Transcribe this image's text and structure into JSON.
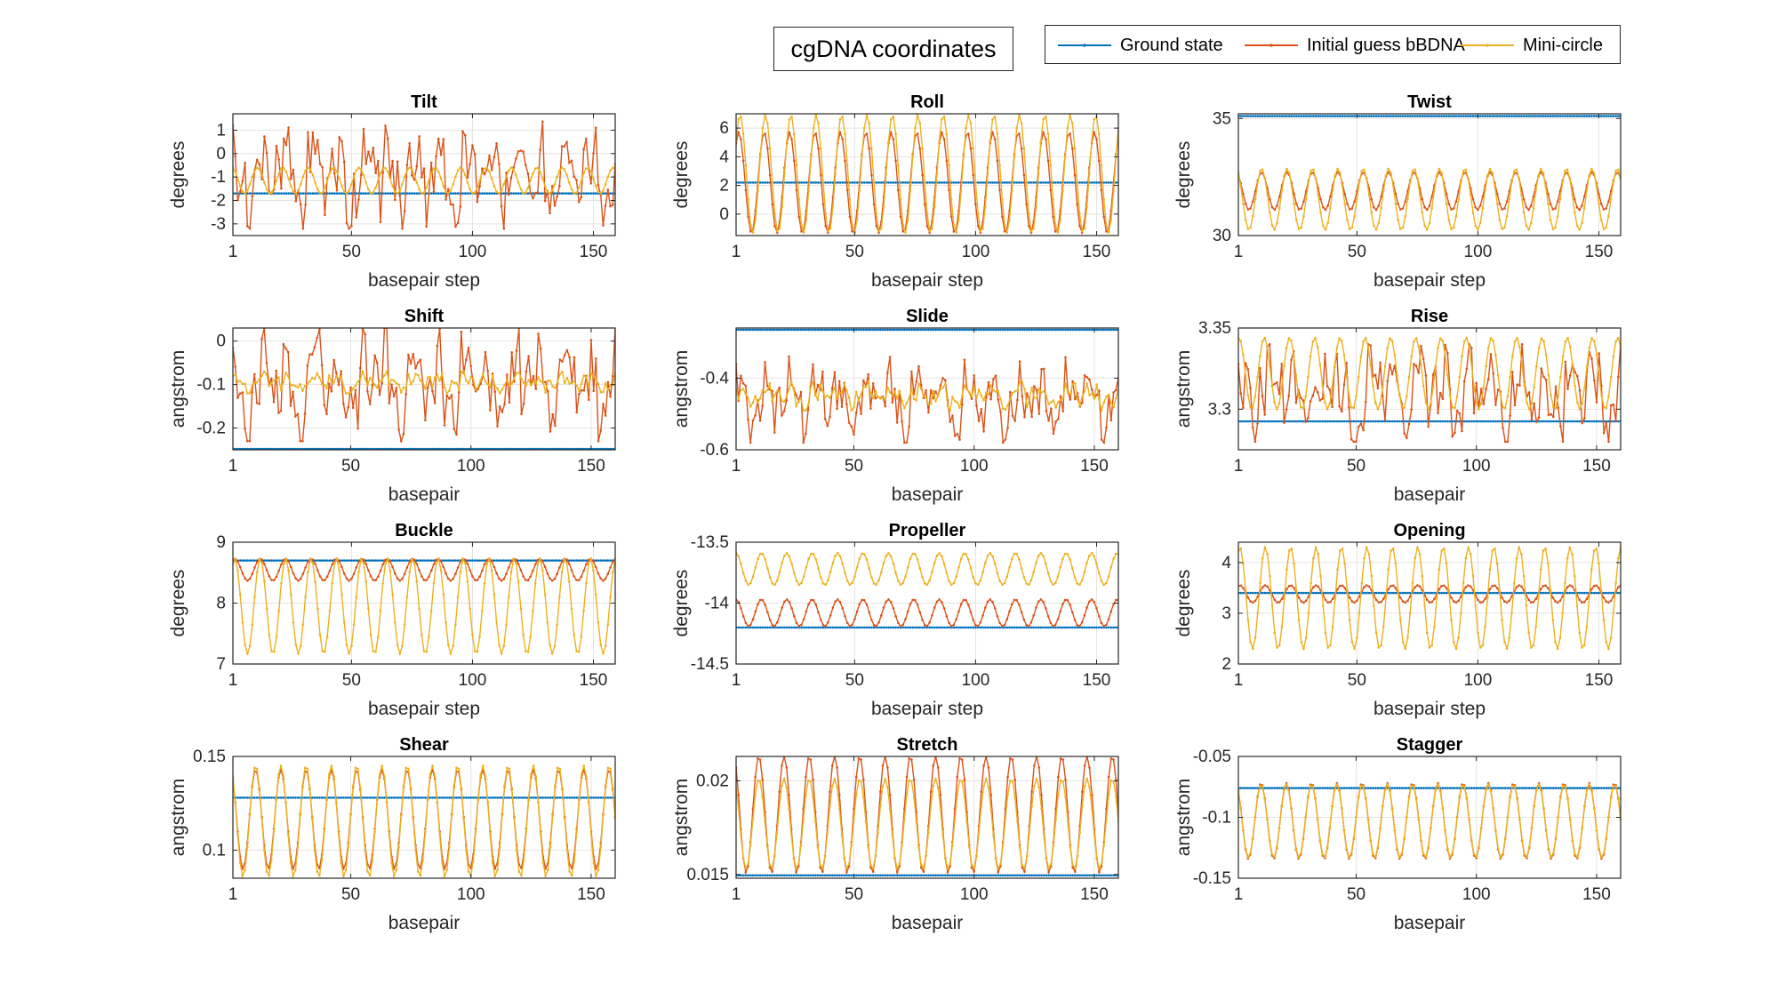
{
  "figure": {
    "title": "cgDNA coordinates",
    "legend": [
      {
        "name": "Ground state",
        "color": "#0072BD"
      },
      {
        "name": "Initial guess bBDNA",
        "color": "#D95319"
      },
      {
        "name": "Mini-circle",
        "color": "#EDB120"
      }
    ]
  },
  "chart_data": [
    {
      "type": "line",
      "title": "Tilt",
      "xlabel": "basepair step",
      "ylabel": "degrees",
      "xlim": [
        1,
        159
      ],
      "ylim": [
        -3.5,
        1.7
      ],
      "xticks": [
        1,
        50,
        100,
        150
      ],
      "yticks": [
        -3,
        -2,
        -1,
        0,
        1
      ],
      "grid": true,
      "n": 159,
      "series": [
        {
          "name": "Ground state",
          "shape": "const",
          "value": -1.7
        },
        {
          "name": "Initial guess bBDNA",
          "shape": "jagged",
          "center": -0.9,
          "amp": 2.3,
          "period": 10.5
        },
        {
          "name": "Mini-circle",
          "shape": "sine",
          "center": -1.15,
          "amp": 0.55,
          "period": 10.5,
          "phase": 1.2
        }
      ]
    },
    {
      "type": "line",
      "title": "Roll",
      "xlabel": "basepair step",
      "ylabel": "degrees",
      "xlim": [
        1,
        159
      ],
      "ylim": [
        -1.5,
        7
      ],
      "xticks": [
        1,
        50,
        100,
        150
      ],
      "yticks": [
        0,
        2,
        4,
        6
      ],
      "grid": true,
      "n": 159,
      "series": [
        {
          "name": "Ground state",
          "shape": "const",
          "value": 2.2
        },
        {
          "name": "Initial guess bBDNA",
          "shape": "sine",
          "center": 2.2,
          "amp": 3.5,
          "period": 10.5,
          "phase": 0.3
        },
        {
          "name": "Mini-circle",
          "shape": "sine",
          "center": 2.8,
          "amp": 4.1,
          "period": 10.5,
          "phase": 0.0
        }
      ]
    },
    {
      "type": "line",
      "title": "Twist",
      "xlabel": "basepair step",
      "ylabel": "degrees",
      "xlim": [
        1,
        159
      ],
      "ylim": [
        30,
        35.2
      ],
      "xticks": [
        1,
        50,
        100,
        150
      ],
      "yticks": [
        30,
        35
      ],
      "grid": true,
      "n": 159,
      "series": [
        {
          "name": "Ground state",
          "shape": "const",
          "value": 35.1
        },
        {
          "name": "Initial guess bBDNA",
          "shape": "sine",
          "center": 31.9,
          "amp": 0.8,
          "period": 10.5,
          "phase": 1.5
        },
        {
          "name": "Mini-circle",
          "shape": "sine",
          "center": 31.55,
          "amp": 1.3,
          "period": 10.5,
          "phase": 1.5
        }
      ]
    },
    {
      "type": "line",
      "title": "Shift",
      "xlabel": "basepair",
      "ylabel": "angstrom",
      "xlim": [
        1,
        160
      ],
      "ylim": [
        -0.25,
        0.03
      ],
      "xticks": [
        1,
        50,
        100,
        150
      ],
      "yticks": [
        -0.2,
        -0.1,
        0
      ],
      "grid": true,
      "n": 160,
      "series": [
        {
          "name": "Ground state",
          "shape": "const",
          "value": -0.248
        },
        {
          "name": "Initial guess bBDNA",
          "shape": "jagged",
          "center": -0.1,
          "amp": 0.13,
          "period": 10.5
        },
        {
          "name": "Mini-circle",
          "shape": "jagged",
          "center": -0.095,
          "amp": 0.025,
          "period": 10.5
        }
      ]
    },
    {
      "type": "line",
      "title": "Slide",
      "xlabel": "basepair",
      "ylabel": "angstrom",
      "xlim": [
        1,
        160
      ],
      "ylim": [
        -0.6,
        -0.26
      ],
      "xticks": [
        1,
        50,
        100,
        150
      ],
      "yticks": [
        -0.6,
        -0.4
      ],
      "grid": true,
      "n": 160,
      "series": [
        {
          "name": "Ground state",
          "shape": "const",
          "value": -0.265
        },
        {
          "name": "Initial guess bBDNA",
          "shape": "jagged",
          "center": -0.46,
          "amp": 0.12,
          "period": 10.5
        },
        {
          "name": "Mini-circle",
          "shape": "jagged",
          "center": -0.45,
          "amp": 0.04,
          "period": 10.5
        }
      ]
    },
    {
      "type": "line",
      "title": "Rise",
      "xlabel": "basepair",
      "ylabel": "angstrom",
      "xlim": [
        1,
        160
      ],
      "ylim": [
        3.275,
        3.35
      ],
      "xticks": [
        1,
        50,
        100,
        150
      ],
      "yticks": [
        3.3,
        3.35
      ],
      "grid": true,
      "n": 160,
      "series": [
        {
          "name": "Ground state",
          "shape": "const",
          "value": 3.2925
        },
        {
          "name": "Initial guess bBDNA",
          "shape": "jagged",
          "center": 3.31,
          "amp": 0.03,
          "period": 10.5
        },
        {
          "name": "Mini-circle",
          "shape": "sine",
          "center": 3.322,
          "amp": 0.022,
          "period": 10.5,
          "phase": 0.8
        }
      ]
    },
    {
      "type": "line",
      "title": "Buckle",
      "xlabel": "basepair step",
      "ylabel": "degrees",
      "xlim": [
        1,
        159
      ],
      "ylim": [
        7,
        9
      ],
      "xticks": [
        1,
        50,
        100,
        150
      ],
      "yticks": [
        7,
        8,
        9
      ],
      "grid": true,
      "n": 159,
      "series": [
        {
          "name": "Ground state",
          "shape": "const",
          "value": 8.7
        },
        {
          "name": "Initial guess bBDNA",
          "shape": "sine",
          "center": 8.55,
          "amp": 0.18,
          "period": 10.5,
          "phase": 0.5
        },
        {
          "name": "Mini-circle",
          "shape": "sine",
          "center": 7.95,
          "amp": 0.78,
          "period": 10.5,
          "phase": 0.5
        }
      ]
    },
    {
      "type": "line",
      "title": "Propeller",
      "xlabel": "basepair step",
      "ylabel": "degrees",
      "xlim": [
        1,
        159
      ],
      "ylim": [
        -14.5,
        -13.5
      ],
      "xticks": [
        1,
        50,
        100,
        150
      ],
      "yticks": [
        -14.5,
        -14,
        -13.5
      ],
      "grid": true,
      "n": 159,
      "series": [
        {
          "name": "Ground state",
          "shape": "const",
          "value": -14.2
        },
        {
          "name": "Initial guess bBDNA",
          "shape": "sine",
          "center": -14.08,
          "amp": 0.11,
          "period": 10.5,
          "phase": 1.0
        },
        {
          "name": "Mini-circle",
          "shape": "sine",
          "center": -13.72,
          "amp": 0.13,
          "period": 10.5,
          "phase": 1.0
        }
      ]
    },
    {
      "type": "line",
      "title": "Opening",
      "xlabel": "basepair step",
      "ylabel": "degrees",
      "xlim": [
        1,
        159
      ],
      "ylim": [
        2,
        4.4
      ],
      "xticks": [
        1,
        50,
        100,
        150
      ],
      "yticks": [
        2,
        3,
        4
      ],
      "grid": true,
      "n": 159,
      "series": [
        {
          "name": "Ground state",
          "shape": "const",
          "value": 3.4
        },
        {
          "name": "Initial guess bBDNA",
          "shape": "sine",
          "center": 3.38,
          "amp": 0.17,
          "period": 10.5,
          "phase": 0.6
        },
        {
          "name": "Mini-circle",
          "shape": "sine",
          "center": 3.3,
          "amp": 1.0,
          "period": 10.5,
          "phase": 0.6
        }
      ]
    },
    {
      "type": "line",
      "title": "Shear",
      "xlabel": "basepair",
      "ylabel": "angstrom",
      "xlim": [
        1,
        160
      ],
      "ylim": [
        0.085,
        0.15
      ],
      "xticks": [
        1,
        50,
        100,
        150
      ],
      "yticks": [
        0.1,
        0.15
      ],
      "grid": true,
      "n": 160,
      "series": [
        {
          "name": "Ground state",
          "shape": "const",
          "value": 0.128
        },
        {
          "name": "Initial guess bBDNA",
          "shape": "sine",
          "center": 0.1165,
          "amp": 0.0265,
          "period": 10.5,
          "phase": 1.6
        },
        {
          "name": "Mini-circle",
          "shape": "sine",
          "center": 0.1155,
          "amp": 0.0295,
          "period": 10.5,
          "phase": 1.6
        }
      ]
    },
    {
      "type": "line",
      "title": "Stretch",
      "xlabel": "basepair",
      "ylabel": "angstrom",
      "xlim": [
        1,
        160
      ],
      "ylim": [
        0.0148,
        0.0213
      ],
      "xticks": [
        1,
        50,
        100,
        150
      ],
      "yticks": [
        0.015,
        0.02
      ],
      "grid": true,
      "n": 160,
      "series": [
        {
          "name": "Ground state",
          "shape": "const",
          "value": 0.01495
        },
        {
          "name": "Initial guess bBDNA",
          "shape": "sine",
          "center": 0.0182,
          "amp": 0.0031,
          "period": 10.5,
          "phase": 1.6
        },
        {
          "name": "Mini-circle",
          "shape": "sine",
          "center": 0.0177,
          "amp": 0.0024,
          "period": 10.5,
          "phase": 1.6
        }
      ]
    },
    {
      "type": "line",
      "title": "Stagger",
      "xlabel": "basepair",
      "ylabel": "angstrom",
      "xlim": [
        1,
        160
      ],
      "ylim": [
        -0.15,
        -0.05
      ],
      "xticks": [
        1,
        50,
        100,
        150
      ],
      "yticks": [
        -0.15,
        -0.1,
        -0.05
      ],
      "grid": true,
      "n": 160,
      "series": [
        {
          "name": "Ground state",
          "shape": "const",
          "value": -0.076
        },
        {
          "name": "Initial guess bBDNA",
          "shape": "sine",
          "center": -0.103,
          "amp": 0.031,
          "period": 10.5,
          "phase": 1.6
        },
        {
          "name": "Mini-circle",
          "shape": "sine",
          "center": -0.103,
          "amp": 0.03,
          "period": 10.5,
          "phase": 1.6
        }
      ]
    }
  ]
}
